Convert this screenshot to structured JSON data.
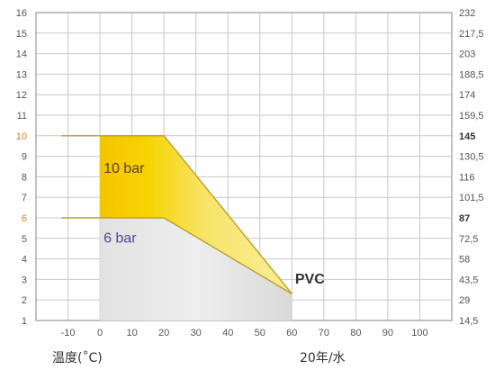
{
  "chart_data": {
    "type": "area",
    "title": "",
    "xlabel": "温度(˚C)",
    "xlabel_right": "20年/水",
    "x_ticks": [
      "-10",
      "0",
      "10",
      "20",
      "30",
      "40",
      "50",
      "60",
      "70",
      "80",
      "90",
      "100"
    ],
    "xlim": [
      -20,
      110
    ],
    "ylim": [
      1,
      16
    ],
    "y_ticks_left": [
      "1",
      "2",
      "3",
      "4",
      "5",
      "6",
      "7",
      "8",
      "9",
      "10",
      "11",
      "12",
      "13",
      "14",
      "15",
      "16"
    ],
    "y_ticks_right": [
      "14,5",
      "29",
      "43,5",
      "58",
      "72,5",
      "87",
      "101,5",
      "116",
      "130,5",
      "145",
      "159,5",
      "174",
      "188,5",
      "203",
      "217,5",
      "232"
    ],
    "highlighted_left_ticks": [
      "6",
      "10"
    ],
    "bold_right_ticks": [
      "87",
      "145"
    ],
    "grid": true,
    "series": [
      {
        "name": "10 bar",
        "x": [
          0,
          20,
          60
        ],
        "y": [
          10,
          10,
          2.3
        ],
        "reference_x": [
          -12,
          0
        ],
        "reference_y": [
          10,
          10
        ],
        "color": "#f2d000"
      },
      {
        "name": "6 bar",
        "x": [
          0,
          20,
          60
        ],
        "y": [
          6,
          6,
          2.3
        ],
        "reference_x": [
          -12,
          0
        ],
        "reference_y": [
          6,
          6
        ],
        "color": "#d6d6d6"
      }
    ],
    "annotations": [
      {
        "text": "PVC",
        "x": 61,
        "y": 2.8
      }
    ],
    "colors": {
      "grid": "#c8c8c8",
      "frame": "#9a9a9a",
      "highlight_tick": "#c8801e",
      "label_10bar": "#5a3a1e",
      "label_6bar": "#4a4a9a",
      "outline": "#b9a12c"
    }
  }
}
